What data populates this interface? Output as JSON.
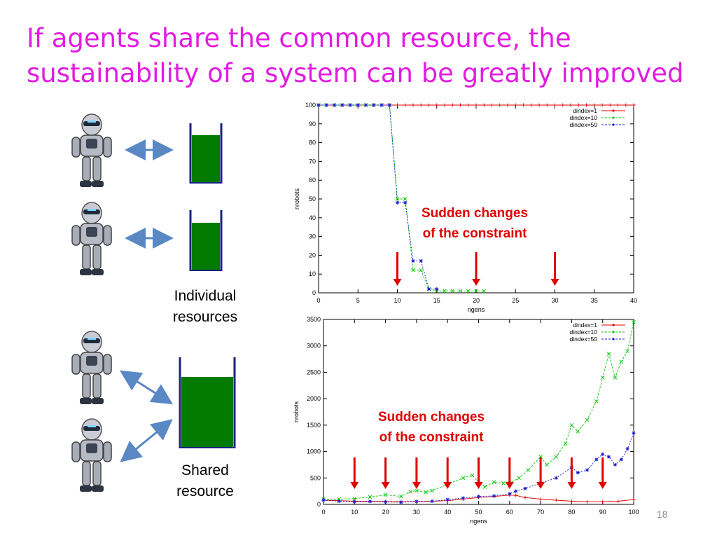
{
  "slide": {
    "title_line1": "If agents share the common resource, the",
    "title_line2": "sustainability of a system can be greatly improved",
    "page_number": "18",
    "title_color": "#e21ce2"
  },
  "left_panel": {
    "individual_label_1": "Individual",
    "individual_label_2": "resources",
    "shared_label_1": "Shared",
    "shared_label_2": "resource",
    "resource_color": "#007a00",
    "arrow_color": "#5a88c4"
  },
  "annotations": {
    "line1": "Sudden changes",
    "line2": "of the constraint",
    "color": "#e00000"
  },
  "chart_data": [
    {
      "type": "line",
      "xlabel": "ngens",
      "ylabel": "nrobots",
      "xlim": [
        0,
        40
      ],
      "ylim": [
        0,
        100
      ],
      "xticks": [
        0,
        5,
        10,
        15,
        20,
        25,
        30,
        35,
        40
      ],
      "yticks": [
        0,
        10,
        20,
        30,
        40,
        50,
        60,
        70,
        80,
        90,
        100
      ],
      "legend_position": "top-right",
      "constraint_changes": [
        10,
        20,
        30
      ],
      "series": [
        {
          "name": "dindex=1",
          "color": "#e00000",
          "x": [
            0,
            1,
            2,
            3,
            4,
            5,
            6,
            7,
            8,
            9,
            10,
            11,
            12,
            13,
            14,
            15,
            16,
            17,
            18,
            19,
            20,
            21,
            22,
            23,
            24,
            25,
            26,
            27,
            28,
            29,
            30,
            31,
            32,
            33,
            34,
            35,
            36,
            37,
            38,
            39,
            40
          ],
          "y": [
            100,
            100,
            100,
            100,
            100,
            100,
            100,
            100,
            100,
            100,
            100,
            100,
            100,
            100,
            100,
            100,
            100,
            100,
            100,
            100,
            100,
            100,
            100,
            100,
            100,
            100,
            100,
            100,
            100,
            100,
            100,
            100,
            100,
            100,
            100,
            100,
            100,
            100,
            100,
            100,
            100
          ]
        },
        {
          "name": "dindex=10",
          "color": "#00c800",
          "x": [
            0,
            1,
            2,
            3,
            4,
            5,
            6,
            7,
            8,
            9,
            10,
            11,
            12,
            13,
            14,
            15,
            16,
            17,
            18,
            19,
            20,
            21
          ],
          "y": [
            100,
            100,
            100,
            100,
            100,
            100,
            100,
            100,
            100,
            100,
            50,
            50,
            12,
            12,
            2,
            1,
            1,
            1,
            1,
            1,
            1,
            1
          ]
        },
        {
          "name": "dindex=50",
          "color": "#1a1ad0",
          "x": [
            0,
            1,
            2,
            3,
            4,
            5,
            6,
            7,
            8,
            9,
            10,
            11,
            12,
            13,
            14,
            15
          ],
          "y": [
            100,
            100,
            100,
            100,
            100,
            100,
            100,
            100,
            100,
            100,
            48,
            48,
            17,
            17,
            2,
            2
          ]
        }
      ]
    },
    {
      "type": "line",
      "xlabel": "ngens",
      "ylabel": "nrobots",
      "xlim": [
        0,
        100
      ],
      "ylim": [
        0,
        3500
      ],
      "xticks": [
        0,
        10,
        20,
        30,
        40,
        50,
        60,
        70,
        80,
        90,
        100
      ],
      "yticks": [
        0,
        500,
        1000,
        1500,
        2000,
        2500,
        3000,
        3500
      ],
      "legend_position": "top-right",
      "constraint_changes": [
        10,
        20,
        30,
        40,
        50,
        60,
        70,
        80,
        90
      ],
      "series": [
        {
          "name": "dindex=1",
          "color": "#e00000",
          "x": [
            0,
            5,
            10,
            15,
            20,
            25,
            30,
            35,
            40,
            45,
            50,
            55,
            60,
            62,
            65,
            70,
            75,
            80,
            85,
            90,
            95,
            100
          ],
          "y": [
            80,
            70,
            60,
            60,
            55,
            50,
            55,
            60,
            70,
            100,
            130,
            150,
            175,
            170,
            130,
            100,
            80,
            60,
            50,
            50,
            60,
            90
          ]
        },
        {
          "name": "dindex=10",
          "color": "#00c800",
          "x": [
            0,
            5,
            10,
            15,
            20,
            25,
            28,
            30,
            33,
            35,
            40,
            45,
            48,
            50,
            52,
            55,
            58,
            60,
            63,
            66,
            70,
            72,
            75,
            78,
            80,
            82,
            85,
            88,
            90,
            92,
            94,
            96,
            98,
            100
          ],
          "y": [
            100,
            100,
            110,
            140,
            180,
            150,
            240,
            260,
            230,
            260,
            380,
            500,
            550,
            420,
            330,
            420,
            400,
            400,
            500,
            650,
            900,
            750,
            900,
            1150,
            1500,
            1380,
            1600,
            1950,
            2400,
            2850,
            2400,
            2700,
            2900,
            3450
          ]
        },
        {
          "name": "dindex=50",
          "color": "#1a1ad0",
          "x": [
            0,
            5,
            10,
            15,
            20,
            25,
            30,
            35,
            40,
            45,
            50,
            55,
            60,
            62,
            65,
            70,
            75,
            80,
            82,
            85,
            88,
            90,
            92,
            94,
            96,
            98,
            100
          ],
          "y": [
            80,
            60,
            50,
            55,
            45,
            40,
            55,
            60,
            90,
            120,
            150,
            160,
            200,
            250,
            300,
            400,
            500,
            700,
            600,
            650,
            850,
            950,
            900,
            750,
            850,
            1050,
            1350
          ]
        }
      ]
    }
  ]
}
